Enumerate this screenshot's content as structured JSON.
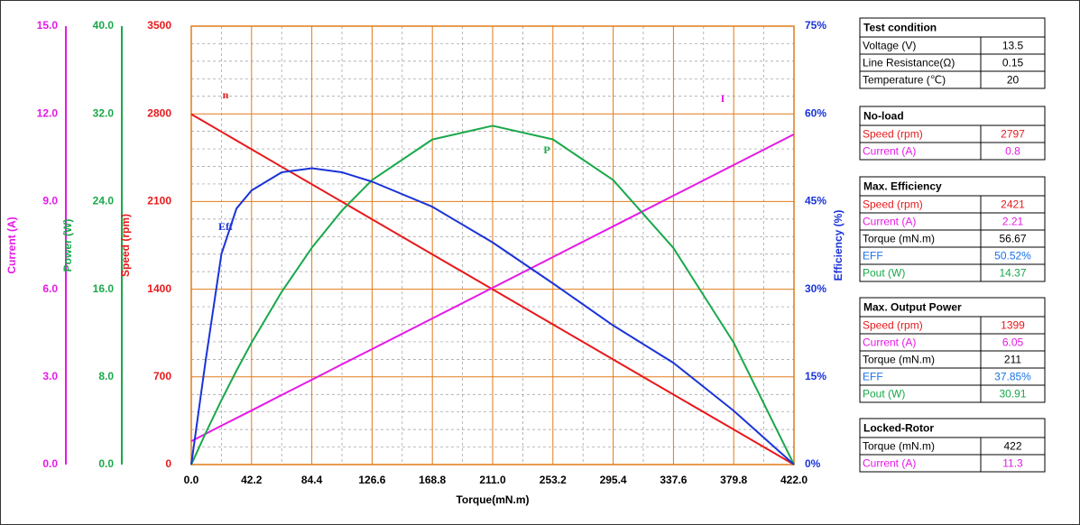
{
  "chart_data": {
    "type": "line",
    "xlabel": "Torque(mN.m)",
    "x": [
      0,
      10,
      21.1,
      31.65,
      42.2,
      63.3,
      84.4,
      105.5,
      126.6,
      168.8,
      211,
      253.2,
      295.4,
      337.6,
      379.8,
      422
    ],
    "xlim": [
      0,
      422
    ],
    "xticks": [
      {
        "value": 0,
        "label": "0.0"
      },
      42.2,
      84.4,
      126.6,
      168.8,
      {
        "value": 211,
        "label": "211.0"
      },
      253.2,
      295.4,
      337.6,
      379.8,
      {
        "value": 422,
        "label": "422.0"
      }
    ],
    "grid": true,
    "y_axes": [
      {
        "title": "Current (A)",
        "color": "#e619e6",
        "lim": [
          0,
          15
        ],
        "ticks": [
          {
            "value": 0,
            "label": "0.0"
          },
          {
            "value": 3,
            "label": "3.0"
          },
          {
            "value": 6,
            "label": "6.0"
          },
          {
            "value": 9,
            "label": "9.0"
          },
          {
            "value": 12,
            "label": "12.0"
          },
          {
            "value": 15,
            "label": "15.0"
          }
        ]
      },
      {
        "title": "Power (W)",
        "color": "#19a84a",
        "lim": [
          0,
          40
        ],
        "ticks": [
          {
            "value": 0,
            "label": "0.0"
          },
          {
            "value": 8,
            "label": "8.0"
          },
          {
            "value": 16,
            "label": "16.0"
          },
          {
            "value": 24,
            "label": "24.0"
          },
          {
            "value": 32,
            "label": "32.0"
          },
          {
            "value": 40,
            "label": "40.0"
          }
        ]
      },
      {
        "title": "Speed (rpm)",
        "color": "#e8191b",
        "lim": [
          0,
          3500
        ],
        "ticks": [
          0,
          700,
          1400,
          2100,
          2800,
          3500
        ]
      },
      {
        "title": "Efficiency (%)",
        "color": "#1a33d9",
        "lim": [
          0,
          75
        ],
        "ticks": [
          {
            "value": 0,
            "label": "0%"
          },
          {
            "value": 15,
            "label": "15%"
          },
          {
            "value": 30,
            "label": "30%"
          },
          {
            "value": 45,
            "label": "45%"
          },
          {
            "value": 60,
            "label": "60%"
          },
          {
            "value": 75,
            "label": "75%"
          }
        ]
      }
    ],
    "series": [
      {
        "name": "n",
        "axis": 2,
        "color": "#e8191b",
        "values": [
          2797,
          2731,
          2657,
          2587,
          2517,
          2377,
          2238,
          2098,
          1958,
          1678,
          1399,
          1119,
          839,
          559,
          280,
          0
        ]
      },
      {
        "name": "I",
        "axis": 0,
        "color": "#e619e6",
        "values": [
          0.8,
          1.05,
          1.33,
          1.59,
          1.85,
          2.38,
          2.9,
          3.43,
          3.95,
          5.0,
          6.05,
          7.1,
          8.15,
          9.2,
          10.25,
          11.3
        ]
      },
      {
        "name": "P",
        "axis": 1,
        "color": "#19a84a",
        "values": [
          0,
          2.86,
          5.87,
          8.57,
          11.12,
          15.76,
          19.78,
          23.18,
          25.96,
          29.66,
          30.91,
          29.67,
          25.96,
          19.76,
          11.12,
          0
        ]
      },
      {
        "name": "Eff",
        "axis": 3,
        "color": "#1a33d9",
        "values": [
          0,
          17.7,
          36,
          43.8,
          46.9,
          50,
          50.7,
          50,
          48.4,
          44.1,
          38,
          31,
          23.8,
          17.4,
          9.2,
          0
        ]
      }
    ],
    "tables": [
      {
        "title": "Test condition",
        "rows": [
          {
            "label": "Voltage (V)",
            "value": "13.5"
          },
          {
            "label": "Line Resistance(Ω)",
            "value": "0.15"
          },
          {
            "label": "Temperature (℃)",
            "value": "20"
          }
        ]
      },
      {
        "title": "No-load",
        "rows": [
          {
            "label": "Speed (rpm)",
            "value": "2797",
            "color": "#e8191b"
          },
          {
            "label": "Current (A)",
            "value": "0.8",
            "color": "#e619e6"
          }
        ]
      },
      {
        "title": "Max. Efficiency",
        "rows": [
          {
            "label": "Speed (rpm)",
            "value": "2421",
            "color": "#e8191b"
          },
          {
            "label": "Current (A)",
            "value": "2.21",
            "color": "#e619e6"
          },
          {
            "label": "Torque (mN.m)",
            "value": "56.67"
          },
          {
            "label": "EFF",
            "value": "50.52%",
            "color": "#1a73e8"
          },
          {
            "label": "Pout (W)",
            "value": "14.37",
            "color": "#19a84a"
          }
        ]
      },
      {
        "title": "Max. Output Power",
        "rows": [
          {
            "label": "Speed (rpm)",
            "value": "1399",
            "color": "#e8191b"
          },
          {
            "label": "Current (A)",
            "value": "6.05",
            "color": "#e619e6"
          },
          {
            "label": "Torque (mN.m)",
            "value": "211"
          },
          {
            "label": "EFF",
            "value": "37.85%",
            "color": "#1a73e8"
          },
          {
            "label": "Pout (W)",
            "value": "30.91",
            "color": "#19a84a"
          }
        ]
      },
      {
        "title": "Locked-Rotor",
        "rows": [
          {
            "label": "Torque (mN.m)",
            "value": "422"
          },
          {
            "label": "Current (A)",
            "value": "11.3",
            "color": "#e619e6"
          }
        ]
      }
    ]
  }
}
